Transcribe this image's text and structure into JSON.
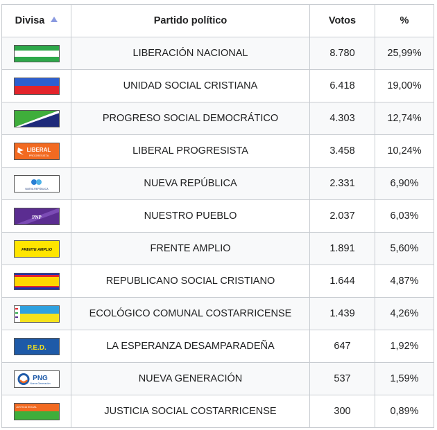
{
  "table": {
    "headers": {
      "divisa": "Divisa",
      "partido": "Partido político",
      "votos": "Votos",
      "pct": "%"
    },
    "rows": [
      {
        "flag": "pln-flag-green-white",
        "partido": "LIBERACIÓN NACIONAL",
        "votos": "8.780",
        "pct": "25,99%"
      },
      {
        "flag": "pusc-flag-blue-red",
        "partido": "UNIDAD SOCIAL CRISTIANA",
        "votos": "6.418",
        "pct": "19,00%"
      },
      {
        "flag": "psd-flag-green-white-navy-diagonal",
        "partido": "PROGRESO SOCIAL DEMOCRÁTICO",
        "votos": "4.303",
        "pct": "12,74%"
      },
      {
        "flag": "plp-flag-orange-liberal",
        "partido": "LIBERAL PROGRESISTA",
        "votos": "3.458",
        "pct": "10,24%"
      },
      {
        "flag": "pnr-flag-white-logo",
        "partido": "NUEVA REPÚBLICA",
        "votos": "2.331",
        "pct": "6,90%"
      },
      {
        "flag": "pnp-flag-purple",
        "partido": "NUESTRO PUEBLO",
        "votos": "2.037",
        "pct": "6,03%"
      },
      {
        "flag": "fa-flag-yellow",
        "partido": "FRENTE AMPLIO",
        "votos": "1.891",
        "pct": "5,60%"
      },
      {
        "flag": "prsc-flag-red-yellow-blue",
        "partido": "REPUBLICANO SOCIAL CRISTIANO",
        "votos": "1.644",
        "pct": "4,87%"
      },
      {
        "flag": "pecc-flag-blue-yellow",
        "partido": "ECOLÓGICO COMUNAL COSTARRICENSE",
        "votos": "1.439",
        "pct": "4,26%"
      },
      {
        "flag": "ped-flag-blue",
        "partido": "LA ESPERANZA DESAMPARADEÑA",
        "votos": "647",
        "pct": "1,92%"
      },
      {
        "flag": "png-flag-white-logo",
        "partido": "NUEVA GENERACIÓN",
        "votos": "537",
        "pct": "1,59%"
      },
      {
        "flag": "pjsc-flag-orange-green",
        "partido": "JUSTICIA SOCIAL COSTARRICENSE",
        "votos": "300",
        "pct": "0,89%"
      }
    ],
    "flag_text": {
      "liberal": "LIBERAL",
      "liberal_sub": "PROGRESISTA",
      "nueva_republica": "NUEVA REPÚBLICA",
      "pnp": "PNP",
      "frente_amplio": "FRENTE AMPLIO",
      "ped": "P.E.D.",
      "png": "PNG",
      "png_sub": "Nueva Generación",
      "jsc": "JUSTICIA SOCIAL"
    },
    "colors": {
      "border": "#a2a9b1",
      "row_alt": "#f8f9fa",
      "sort_arrow": "#8a9ae0"
    }
  }
}
